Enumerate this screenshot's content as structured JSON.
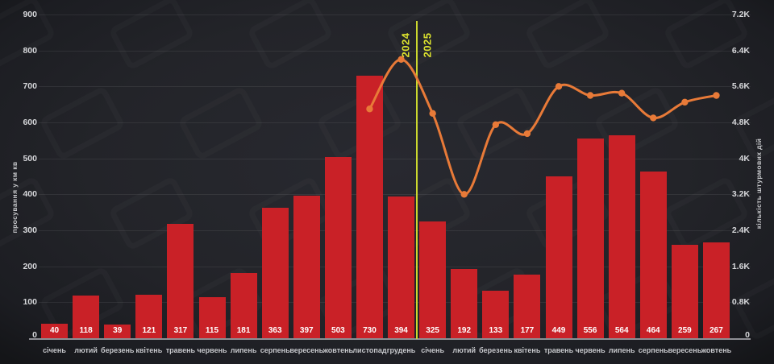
{
  "chart": {
    "left_axis": {
      "title": "просування у км кв",
      "ticks": [
        "900",
        "800",
        "700",
        "600",
        "500",
        "400",
        "300",
        "200",
        "100",
        "0"
      ]
    },
    "right_axis": {
      "title": "кількість штурмових дій",
      "ticks": [
        "7.2K",
        "6.4K",
        "5.6K",
        "4.8K",
        "4K",
        "3.2K",
        "2.4K",
        "1.6K",
        "0.8K",
        "0"
      ]
    },
    "divider": {
      "left_label": "2024",
      "right_label": "2025"
    },
    "colors": {
      "background": "#232429",
      "bar": "#c92127",
      "line": "#e87a38",
      "marker": "#e87a38",
      "divider": "#ccd92e",
      "year_label": "#dce22e",
      "grid": "rgba(255,255,255,0.075)",
      "axis_line": "#8e8e94",
      "tick_text": "#d6d7da",
      "value_text": "#ffffff",
      "month_text": "#c6c7cb"
    }
  },
  "chart_data": {
    "type": "bar+line",
    "categories": [
      "січень",
      "лютий",
      "березень",
      "квітень",
      "травень",
      "червень",
      "липень",
      "серпень",
      "вересень",
      "жовтень",
      "листопад",
      "грудень",
      "січень",
      "лютий",
      "березень",
      "квітень",
      "травень",
      "червень",
      "липень",
      "серпень",
      "вересень",
      "жовтень"
    ],
    "series": [
      {
        "name": "просування у км кв",
        "type": "bar",
        "axis": "left",
        "values": [
          40,
          118,
          39,
          121,
          317,
          115,
          181,
          363,
          397,
          503,
          730,
          394,
          325,
          192,
          133,
          177,
          449,
          556,
          564,
          464,
          259,
          267
        ]
      },
      {
        "name": "кількість штурмових дій",
        "type": "line",
        "axis": "right",
        "values": [
          null,
          null,
          null,
          null,
          null,
          null,
          null,
          null,
          null,
          null,
          5100,
          6200,
          5000,
          3200,
          4750,
          4550,
          5600,
          5400,
          5450,
          4900,
          5250,
          5400
        ]
      }
    ],
    "left_axis_range": [
      0,
      900
    ],
    "right_axis_range": [
      0,
      7200
    ],
    "left_tick_step": 100,
    "right_tick_step": 800,
    "grid": true,
    "legend": "none",
    "year_divider_after_index": 11,
    "title": "",
    "xlabel": ""
  }
}
